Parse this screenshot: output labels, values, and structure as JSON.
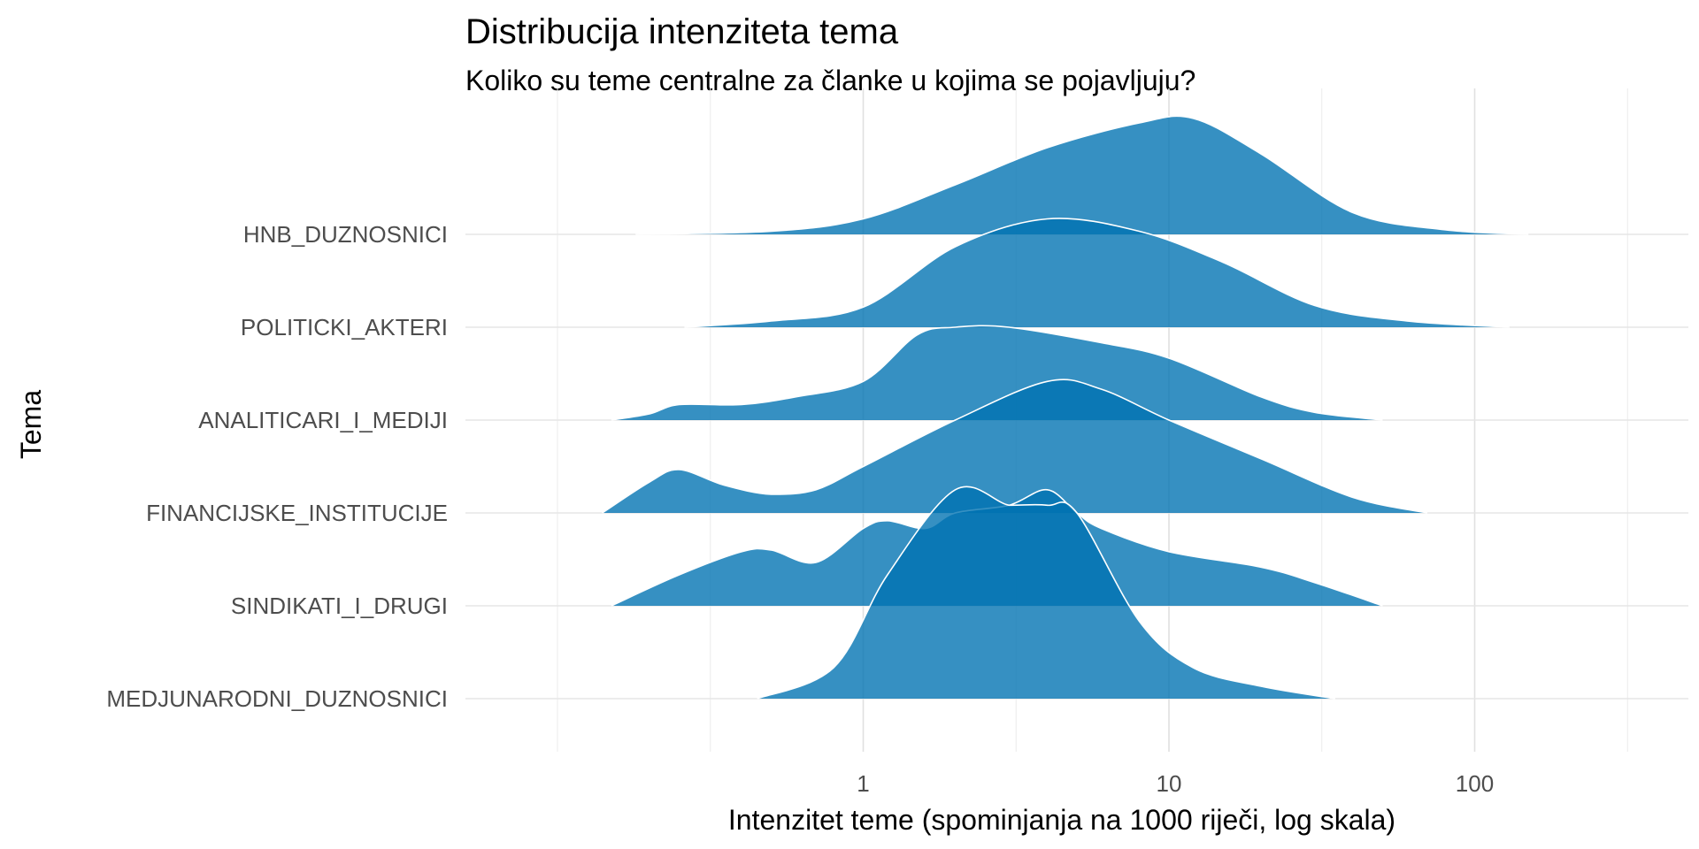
{
  "chart_data": {
    "type": "ridgeline",
    "title": "Distribucija intenziteta tema",
    "subtitle": "Koliko su teme centralne za članke u kojima se pojavljuju?",
    "xlabel": "Intenzitet teme (spominjanja na 1000 riječi, log skala)",
    "ylabel": "Tema",
    "x_scale": "log10",
    "xlim": [
      0.05,
      500
    ],
    "x_ticks": [
      1,
      10,
      100
    ],
    "x_tick_labels": [
      "1",
      "10",
      "100"
    ],
    "grid": true,
    "fill_color": "#0072B2",
    "outline_color": "#ffffff",
    "categories": [
      "HNB_DUZNOSNICI",
      "POLITICKI_AKTERI",
      "ANALITICARI_I_MEDIJI",
      "FINANCIJSKE_INSTITUCIJE",
      "SINDIKATI_I_DRUGI",
      "MEDJUNARODNI_DUZNOSNICI"
    ],
    "series": [
      {
        "name": "HNB_DUZNOSNICI",
        "x": [
          0.18,
          0.5,
          1,
          2,
          4,
          8,
          12,
          20,
          40,
          80,
          150
        ],
        "density": [
          0,
          0.02,
          0.1,
          0.32,
          0.56,
          0.72,
          0.75,
          0.52,
          0.14,
          0.03,
          0
        ]
      },
      {
        "name": "POLITICKI_AKTERI",
        "x": [
          0.26,
          0.5,
          1,
          2,
          4,
          8,
          15,
          30,
          60,
          130
        ],
        "density": [
          0,
          0.04,
          0.13,
          0.52,
          0.7,
          0.62,
          0.42,
          0.14,
          0.04,
          0
        ]
      },
      {
        "name": "ANALITICARI_I_MEDIJI",
        "x": [
          0.15,
          0.2,
          0.25,
          0.4,
          0.6,
          1,
          1.5,
          2,
          3,
          6,
          10,
          20,
          30,
          50
        ],
        "density": [
          0,
          0.04,
          0.1,
          0.1,
          0.15,
          0.25,
          0.55,
          0.6,
          0.6,
          0.5,
          0.4,
          0.15,
          0.05,
          0
        ]
      },
      {
        "name": "FINANCIJSKE_INSTITUCIJE",
        "x": [
          0.14,
          0.2,
          0.25,
          0.35,
          0.5,
          0.7,
          1,
          2,
          4,
          6,
          10,
          20,
          40,
          70
        ],
        "density": [
          0,
          0.2,
          0.28,
          0.18,
          0.12,
          0.15,
          0.3,
          0.6,
          0.85,
          0.8,
          0.6,
          0.35,
          0.1,
          0
        ]
      },
      {
        "name": "SINDIKATI_I_DRUGI",
        "x": [
          0.15,
          0.25,
          0.4,
          0.5,
          0.7,
          1,
          1.2,
          1.6,
          2,
          3,
          4,
          5,
          6,
          10,
          20,
          30,
          50
        ],
        "density": [
          0,
          0.2,
          0.35,
          0.36,
          0.28,
          0.5,
          0.55,
          0.5,
          0.6,
          0.65,
          0.75,
          0.6,
          0.5,
          0.35,
          0.25,
          0.15,
          0
        ]
      },
      {
        "name": "MEDJUNARODNI_DUZNOSNICI",
        "x": [
          0.45,
          0.8,
          1.2,
          2,
          3,
          4,
          5,
          8,
          12,
          20,
          35
        ],
        "density": [
          0,
          0.2,
          0.8,
          1.35,
          1.25,
          1.25,
          1.2,
          0.5,
          0.2,
          0.08,
          0
        ]
      }
    ]
  }
}
